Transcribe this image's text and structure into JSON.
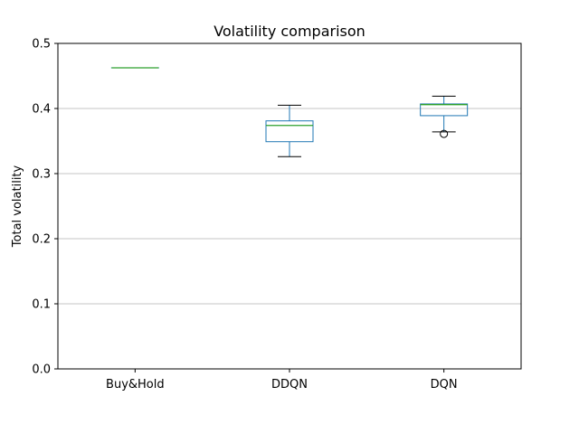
{
  "chart_data": {
    "type": "box",
    "title": "Volatility comparison",
    "xlabel": "",
    "ylabel": "Total volatility",
    "ylim": [
      0,
      0.5
    ],
    "yticks": [
      "0.0",
      "0.1",
      "0.2",
      "0.3",
      "0.4",
      "0.5"
    ],
    "ytick_values": [
      0,
      0.1,
      0.2,
      0.3,
      0.4,
      0.5
    ],
    "grid": "horizontal",
    "categories": [
      "Buy&Hold",
      "DDQN",
      "DQN"
    ],
    "boxes": [
      {
        "category": "Buy&Hold",
        "whisker_low": 0.4625,
        "q1": 0.4625,
        "median": 0.4625,
        "q3": 0.4625,
        "whisker_high": 0.4625,
        "outliers": []
      },
      {
        "category": "DDQN",
        "whisker_low": 0.326,
        "q1": 0.349,
        "median": 0.374,
        "q3": 0.381,
        "whisker_high": 0.405,
        "outliers": []
      },
      {
        "category": "DQN",
        "whisker_low": 0.364,
        "q1": 0.389,
        "median": 0.406,
        "q3": 0.407,
        "whisker_high": 0.419,
        "outliers": [
          0.361
        ]
      }
    ],
    "colors": {
      "box": "#1f77b4",
      "median": "#2ca02c",
      "whisker_cap": "#000000",
      "grid": "#b0b0b0",
      "axes": "#000000"
    }
  }
}
